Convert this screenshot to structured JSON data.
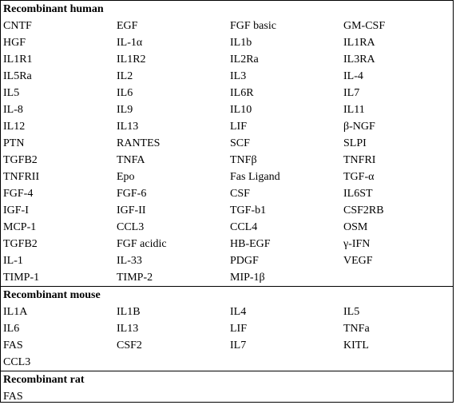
{
  "sections": [
    {
      "title": "Recombinant human",
      "items": [
        "CNTF",
        "EGF",
        "FGF basic",
        "GM-CSF",
        "HGF",
        "IL-1α",
        "IL1b",
        "IL1RA",
        "IL1R1",
        "IL1R2",
        "IL2Ra",
        "IL3RA",
        "IL5Ra",
        "IL2",
        "IL3",
        "IL-4",
        "IL5",
        "IL6",
        "IL6R",
        "IL7",
        "IL-8",
        "IL9",
        "IL10",
        "IL11",
        "IL12",
        "IL13",
        "LIF",
        "β-NGF",
        "PTN",
        "RANTES",
        "SCF",
        "SLPI",
        "TGFB2",
        "TNFA",
        "TNFβ",
        "TNFRI",
        "TNFRII",
        "Epo",
        "Fas Ligand",
        "TGF-α",
        "FGF-4",
        "FGF-6",
        "CSF",
        "IL6ST",
        "IGF-I",
        "IGF-II",
        "TGF-b1",
        "CSF2RB",
        "MCP-1",
        "CCL3",
        "CCL4",
        "OSM",
        "TGFB2",
        "FGF acidic",
        "HB-EGF",
        "γ-IFN",
        "IL-1",
        "IL-33",
        "PDGF",
        "VEGF",
        "TIMP-1",
        "TIMP-2",
        "MIP-1β",
        ""
      ]
    },
    {
      "title": "Recombinant mouse",
      "items": [
        "IL1A",
        "IL1B",
        "IL4",
        "IL5",
        "IL6",
        "IL13",
        "LIF",
        "TNFa",
        "FAS",
        "CSF2",
        "IL7",
        "KITL",
        "CCL3",
        "",
        "",
        ""
      ]
    },
    {
      "title": "Recombinant rat",
      "items": [
        "FAS",
        "",
        "",
        ""
      ]
    }
  ]
}
